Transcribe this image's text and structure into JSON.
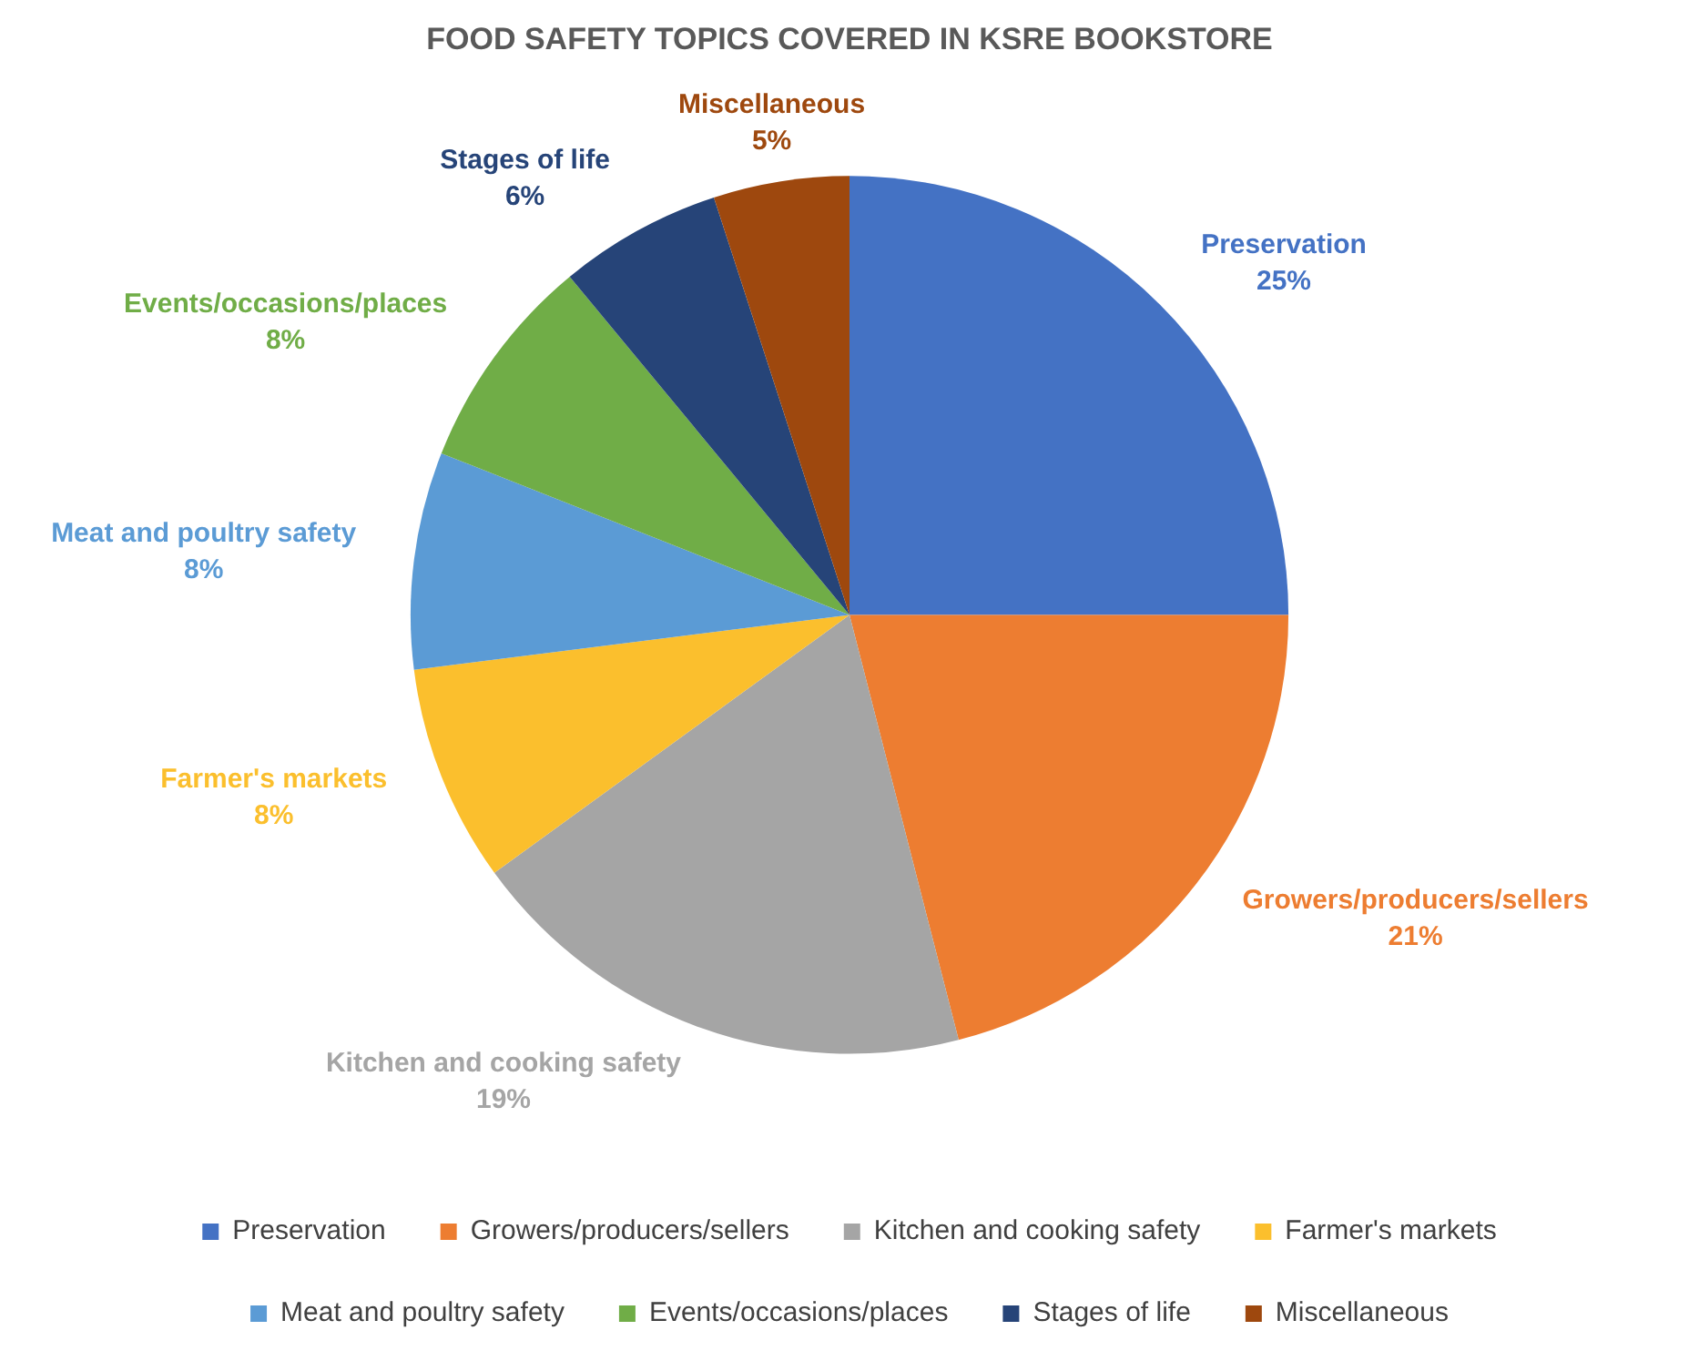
{
  "chart_data": {
    "type": "pie",
    "title": "FOOD SAFETY TOPICS COVERED IN KSRE BOOKSTORE",
    "categories": [
      "Preservation",
      "Growers/producers/sellers",
      "Kitchen and cooking safety",
      "Farmer's markets",
      "Meat and poultry safety",
      "Events/occasions/places",
      "Stages of life",
      "Miscellaneous"
    ],
    "values": [
      25,
      21,
      19,
      8,
      8,
      8,
      6,
      5
    ],
    "value_labels": [
      "25%",
      "21%",
      "19%",
      "8%",
      "8%",
      "8%",
      "6%",
      "5%"
    ],
    "colors": [
      "#4472c4",
      "#ed7d31",
      "#a5a5a5",
      "#fbbf2d",
      "#5b9bd5",
      "#70ad47",
      "#264478",
      "#9e480e"
    ],
    "legend": "bottom"
  }
}
